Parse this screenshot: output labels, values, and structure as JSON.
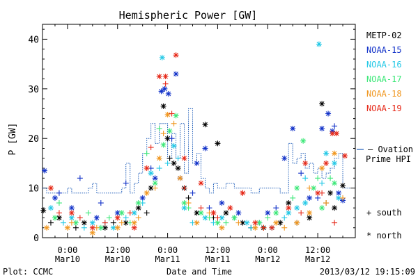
{
  "chart_data": {
    "type": "scatter",
    "title": "Hemispheric Power [GW]",
    "ylabel": "P [GW]",
    "xlabel": "Date and Time",
    "footer_left": "Plot: CCMC",
    "footer_right": "2013/03/12 19:15:09",
    "ylim": [
      0,
      43
    ],
    "xlim": [
      -6,
      69
    ],
    "x_unit": "hours since 2013-03-10 00:00",
    "yticks": [
      0,
      10,
      20,
      30,
      40
    ],
    "xticks": [
      {
        "x": 0,
        "line1": "0:00",
        "line2": "Mar10"
      },
      {
        "x": 12,
        "line1": "12:00",
        "line2": "Mar10"
      },
      {
        "x": 24,
        "line1": "0:00",
        "line2": "Mar11"
      },
      {
        "x": 36,
        "line1": "12:00",
        "line2": "Mar11"
      },
      {
        "x": 48,
        "line1": "0:00",
        "line2": "Mar12"
      },
      {
        "x": 60,
        "line1": "12:00",
        "line2": "Mar12"
      }
    ],
    "legend": [
      {
        "name": "METP-02",
        "color": "#000000"
      },
      {
        "name": "NOAA-15",
        "color": "#1030c8"
      },
      {
        "name": "NOAA-16",
        "color": "#22c8e6"
      },
      {
        "name": "NOAA-17",
        "color": "#3ce878"
      },
      {
        "name": "NOAA-18",
        "color": "#f0961e"
      },
      {
        "name": "NOAA-19",
        "color": "#e62818"
      }
    ],
    "ovation_label": [
      "— Ovation",
      "Prime HPI"
    ],
    "ovation_color": "#1a5ab8",
    "marker_legend": {
      "south": "+ south",
      "north": "* north"
    },
    "ovation": [
      [
        -6,
        10
      ],
      [
        -5,
        9
      ],
      [
        -3,
        9
      ],
      [
        -1,
        9
      ],
      [
        0,
        10
      ],
      [
        1,
        9
      ],
      [
        3,
        9
      ],
      [
        5,
        10
      ],
      [
        6,
        11
      ],
      [
        7,
        9
      ],
      [
        9,
        9
      ],
      [
        11,
        9
      ],
      [
        13,
        10
      ],
      [
        14,
        15
      ],
      [
        15,
        9
      ],
      [
        16,
        11
      ],
      [
        17,
        13
      ],
      [
        18,
        17
      ],
      [
        19,
        20
      ],
      [
        20,
        23
      ],
      [
        21,
        19
      ],
      [
        22,
        23
      ],
      [
        23,
        23
      ],
      [
        24,
        16
      ],
      [
        25,
        21
      ],
      [
        26,
        16
      ],
      [
        27,
        23
      ],
      [
        28,
        13
      ],
      [
        29,
        26
      ],
      [
        30,
        15
      ],
      [
        31,
        17
      ],
      [
        32,
        12
      ],
      [
        33,
        10
      ],
      [
        34,
        9
      ],
      [
        35,
        11
      ],
      [
        36,
        10
      ],
      [
        38,
        11
      ],
      [
        40,
        10
      ],
      [
        43,
        10
      ],
      [
        44,
        9
      ],
      [
        46,
        10
      ],
      [
        48,
        10
      ],
      [
        50,
        10
      ],
      [
        51,
        9
      ],
      [
        53,
        19
      ],
      [
        54,
        15
      ],
      [
        55,
        16
      ],
      [
        56,
        17
      ],
      [
        57,
        14
      ],
      [
        58,
        15
      ],
      [
        59,
        13
      ],
      [
        60,
        14
      ],
      [
        61,
        12
      ],
      [
        62,
        13
      ],
      [
        63,
        14
      ],
      [
        64,
        16
      ],
      [
        65,
        17
      ],
      [
        66,
        10
      ],
      [
        67,
        10
      ]
    ],
    "points": {
      "METP-02": {
        "north": [
          [
            -5.8,
            5.5
          ],
          [
            -2,
            4
          ],
          [
            4,
            3
          ],
          [
            9,
            2
          ],
          [
            14,
            3
          ],
          [
            17,
            6
          ],
          [
            20,
            10
          ],
          [
            23,
            26.5
          ],
          [
            24,
            20
          ],
          [
            25.5,
            15
          ],
          [
            26.5,
            14
          ],
          [
            28,
            10
          ],
          [
            31,
            5
          ],
          [
            33,
            22.8
          ],
          [
            36,
            19
          ],
          [
            38,
            5
          ],
          [
            42,
            3
          ],
          [
            47,
            2
          ],
          [
            51,
            3
          ],
          [
            53,
            7
          ],
          [
            58,
            4
          ],
          [
            61,
            27
          ],
          [
            63,
            9
          ],
          [
            64,
            6
          ],
          [
            66,
            10.5
          ]
        ],
        "south": [
          [
            -4,
            3
          ],
          [
            2,
            2
          ],
          [
            11,
            3
          ],
          [
            19,
            5
          ],
          [
            24.5,
            16
          ],
          [
            29,
            8
          ],
          [
            35,
            4
          ],
          [
            44,
            2
          ],
          [
            55,
            3
          ],
          [
            62,
            7
          ]
        ]
      },
      "NOAA-15": {
        "north": [
          [
            -5.5,
            13.5
          ],
          [
            -3,
            8
          ],
          [
            1,
            6
          ],
          [
            7,
            4
          ],
          [
            12,
            5
          ],
          [
            18,
            8
          ],
          [
            21,
            12
          ],
          [
            22.5,
            29.5
          ],
          [
            23.3,
            30
          ],
          [
            24.2,
            29
          ],
          [
            26,
            33
          ],
          [
            27,
            12
          ],
          [
            31,
            15
          ],
          [
            33,
            18
          ],
          [
            37,
            7
          ],
          [
            41,
            5
          ],
          [
            48,
            5
          ],
          [
            52,
            16
          ],
          [
            54,
            22
          ],
          [
            58,
            8
          ],
          [
            61,
            22
          ],
          [
            62.5,
            25
          ],
          [
            63.5,
            21.5
          ],
          [
            65,
            9
          ],
          [
            66,
            7.5
          ]
        ],
        "south": [
          [
            -2,
            9
          ],
          [
            3,
            12
          ],
          [
            8,
            7
          ],
          [
            14,
            11
          ],
          [
            20,
            14
          ],
          [
            25,
            20
          ],
          [
            30,
            9
          ],
          [
            34,
            6
          ],
          [
            40,
            4
          ],
          [
            46,
            3
          ],
          [
            50,
            6
          ],
          [
            56,
            13
          ],
          [
            60,
            8
          ],
          [
            64,
            22.5
          ]
        ]
      },
      "NOAA-16": {
        "north": [
          [
            -4,
            6
          ],
          [
            1,
            4
          ],
          [
            6,
            3
          ],
          [
            11,
            2
          ],
          [
            16,
            5
          ],
          [
            20,
            13
          ],
          [
            22.7,
            36.3
          ],
          [
            25.5,
            18.5
          ],
          [
            28,
            6
          ],
          [
            33,
            4
          ],
          [
            37,
            4
          ],
          [
            43,
            3
          ],
          [
            49,
            2
          ],
          [
            53,
            5
          ],
          [
            55,
            6
          ],
          [
            57,
            7
          ],
          [
            60.3,
            39
          ],
          [
            62,
            17
          ],
          [
            64,
            15
          ],
          [
            65,
            8
          ]
        ],
        "south": [
          [
            -1,
            3
          ],
          [
            4,
            2
          ],
          [
            9,
            3
          ],
          [
            14,
            4
          ],
          [
            18,
            7
          ],
          [
            22,
            14
          ],
          [
            24,
            15
          ],
          [
            26.5,
            16
          ],
          [
            30,
            3
          ],
          [
            35,
            3
          ],
          [
            44,
            2
          ],
          [
            52,
            4
          ],
          [
            57,
            12
          ],
          [
            61,
            11
          ]
        ]
      },
      "NOAA-17": {
        "north": [
          [
            -3,
            4
          ],
          [
            2,
            3
          ],
          [
            8,
            2
          ],
          [
            13,
            5
          ],
          [
            17,
            7
          ],
          [
            21,
            11
          ],
          [
            23,
            18.7
          ],
          [
            24.5,
            21.5
          ],
          [
            26,
            24.6
          ],
          [
            28,
            7
          ],
          [
            32,
            5
          ],
          [
            36,
            3
          ],
          [
            40,
            4
          ],
          [
            46,
            3
          ],
          [
            50,
            5
          ],
          [
            55,
            10
          ],
          [
            56.5,
            19.5
          ],
          [
            59,
            10
          ],
          [
            61,
            6
          ],
          [
            64,
            11
          ]
        ],
        "south": [
          [
            -2,
            7
          ],
          [
            5,
            5
          ],
          [
            10,
            4
          ],
          [
            15,
            3
          ],
          [
            19,
            17
          ],
          [
            22,
            22
          ],
          [
            29,
            6
          ],
          [
            34,
            4
          ],
          [
            38,
            3
          ],
          [
            48,
            4
          ],
          [
            54,
            8
          ],
          [
            60,
            12
          ],
          [
            63,
            12
          ]
        ]
      },
      "NOAA-18": {
        "north": [
          [
            -5,
            2
          ],
          [
            0,
            2
          ],
          [
            6,
            1
          ],
          [
            12,
            2
          ],
          [
            16,
            3
          ],
          [
            19,
            9
          ],
          [
            22,
            16
          ],
          [
            24,
            24.8
          ],
          [
            27,
            12
          ],
          [
            31,
            3
          ],
          [
            37,
            2
          ],
          [
            45,
            2
          ],
          [
            50,
            3
          ],
          [
            55,
            3
          ],
          [
            58,
            5
          ],
          [
            61,
            14
          ],
          [
            64,
            17
          ]
        ],
        "south": [
          [
            -4,
            10
          ],
          [
            1,
            3
          ],
          [
            7,
            2
          ],
          [
            13,
            3
          ],
          [
            17,
            4
          ],
          [
            21,
            10
          ],
          [
            23,
            21
          ],
          [
            25.5,
            23
          ],
          [
            29,
            7
          ],
          [
            34,
            5
          ],
          [
            41,
            3
          ],
          [
            47,
            2
          ],
          [
            52,
            2
          ],
          [
            58,
            10
          ],
          [
            62,
            7
          ],
          [
            66,
            8
          ]
        ]
      },
      "NOAA-19": {
        "north": [
          [
            -4,
            10
          ],
          [
            1,
            5
          ],
          [
            6,
            2
          ],
          [
            12,
            4
          ],
          [
            16,
            2
          ],
          [
            19,
            14
          ],
          [
            22,
            32.5
          ],
          [
            23.5,
            32.5
          ],
          [
            26,
            36.8
          ],
          [
            28,
            16
          ],
          [
            32,
            11
          ],
          [
            35,
            5
          ],
          [
            39,
            6
          ],
          [
            42,
            9
          ],
          [
            45,
            3
          ],
          [
            49,
            2
          ],
          [
            53,
            6
          ],
          [
            57,
            15
          ],
          [
            60,
            9
          ],
          [
            62,
            15
          ],
          [
            63.5,
            21
          ],
          [
            64.5,
            21
          ],
          [
            66.5,
            16.5
          ]
        ],
        "south": [
          [
            -2,
            5
          ],
          [
            3,
            4
          ],
          [
            9,
            3
          ],
          [
            15,
            5
          ],
          [
            20,
            18.2
          ],
          [
            23.5,
            31
          ],
          [
            25,
            25
          ],
          [
            28,
            10
          ],
          [
            32,
            6
          ],
          [
            36,
            4
          ],
          [
            42,
            9
          ],
          [
            47,
            2
          ],
          [
            56,
            5
          ],
          [
            61,
            9
          ],
          [
            64,
            3
          ]
        ]
      }
    }
  }
}
